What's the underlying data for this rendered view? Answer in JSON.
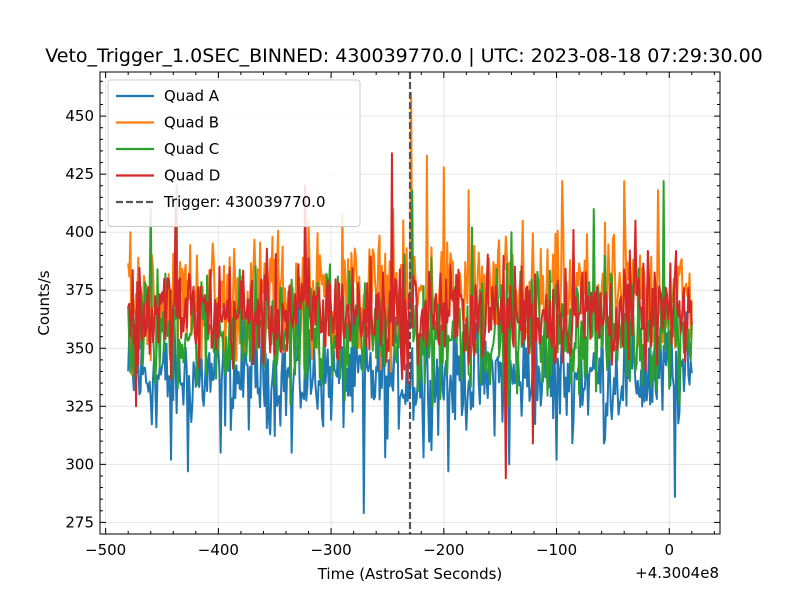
{
  "chart_data": {
    "type": "line",
    "title": "Veto_Trigger_1.0SEC_BINNED: 430039770.0 | UTC: 2023-08-18 07:29:30.00",
    "xlabel": "Time (AstroSat Seconds)",
    "ylabel": "Counts/s",
    "x_offset_label": "+4.3004e8",
    "xlim": [
      -505,
      45
    ],
    "ylim": [
      270,
      469
    ],
    "x_ticks": [
      -500,
      -400,
      -300,
      -200,
      -100,
      0
    ],
    "x_tick_labels": [
      "−500",
      "−400",
      "−300",
      "−200",
      "−100",
      "0"
    ],
    "y_ticks": [
      275,
      300,
      325,
      350,
      375,
      400,
      425,
      450
    ],
    "y_tick_labels": [
      "275",
      "300",
      "325",
      "350",
      "375",
      "400",
      "425",
      "450"
    ],
    "grid": true,
    "legend_position": "top-left",
    "x_range": [
      -480,
      20
    ],
    "sample_step": 1,
    "series": [
      {
        "name": "Quad A",
        "color": "#1f77b4",
        "mean": 338,
        "spread": 14,
        "extremes": [
          [
            -484,
            336
          ],
          [
            -455,
            316
          ],
          [
            -442,
            302
          ],
          [
            -427,
            297
          ],
          [
            -398,
            305
          ],
          [
            -335,
            305
          ],
          [
            -271,
            279
          ],
          [
            -252,
            303
          ],
          [
            -218,
            303
          ],
          [
            -196,
            297
          ],
          [
            -142,
            300
          ],
          [
            -100,
            302
          ],
          [
            -58,
            309
          ],
          [
            5,
            286
          ]
        ]
      },
      {
        "name": "Quad B",
        "color": "#ff7f0e",
        "mean": 372,
        "spread": 16,
        "extremes": [
          [
            -478,
            400
          ],
          [
            -352,
            398
          ],
          [
            -320,
            405
          ],
          [
            -290,
            408
          ],
          [
            -245,
            410
          ],
          [
            -229,
            460
          ],
          [
            -215,
            433
          ],
          [
            -200,
            428
          ],
          [
            -178,
            418
          ],
          [
            -130,
            405
          ],
          [
            -95,
            422
          ],
          [
            -40,
            422
          ],
          [
            -10,
            418
          ]
        ]
      },
      {
        "name": "Quad C",
        "color": "#2ca02c",
        "mean": 358,
        "spread": 16,
        "extremes": [
          [
            -460,
            410
          ],
          [
            -437,
            420
          ],
          [
            -228,
            418
          ],
          [
            -210,
            325
          ],
          [
            -175,
            402
          ],
          [
            -140,
            400
          ],
          [
            -67,
            410
          ],
          [
            -5,
            422
          ]
        ]
      },
      {
        "name": "Quad D",
        "color": "#d62728",
        "mean": 365,
        "spread": 14,
        "extremes": [
          [
            -473,
            325
          ],
          [
            -438,
            410
          ],
          [
            -323,
            420
          ],
          [
            -246,
            434
          ],
          [
            -232,
            335
          ],
          [
            -145,
            294
          ],
          [
            -121,
            309
          ],
          [
            -85,
            401
          ],
          [
            -30,
            405
          ]
        ]
      }
    ],
    "trigger": {
      "label": "Trigger: 430039770.0",
      "x": -230,
      "color": "#555555"
    }
  }
}
